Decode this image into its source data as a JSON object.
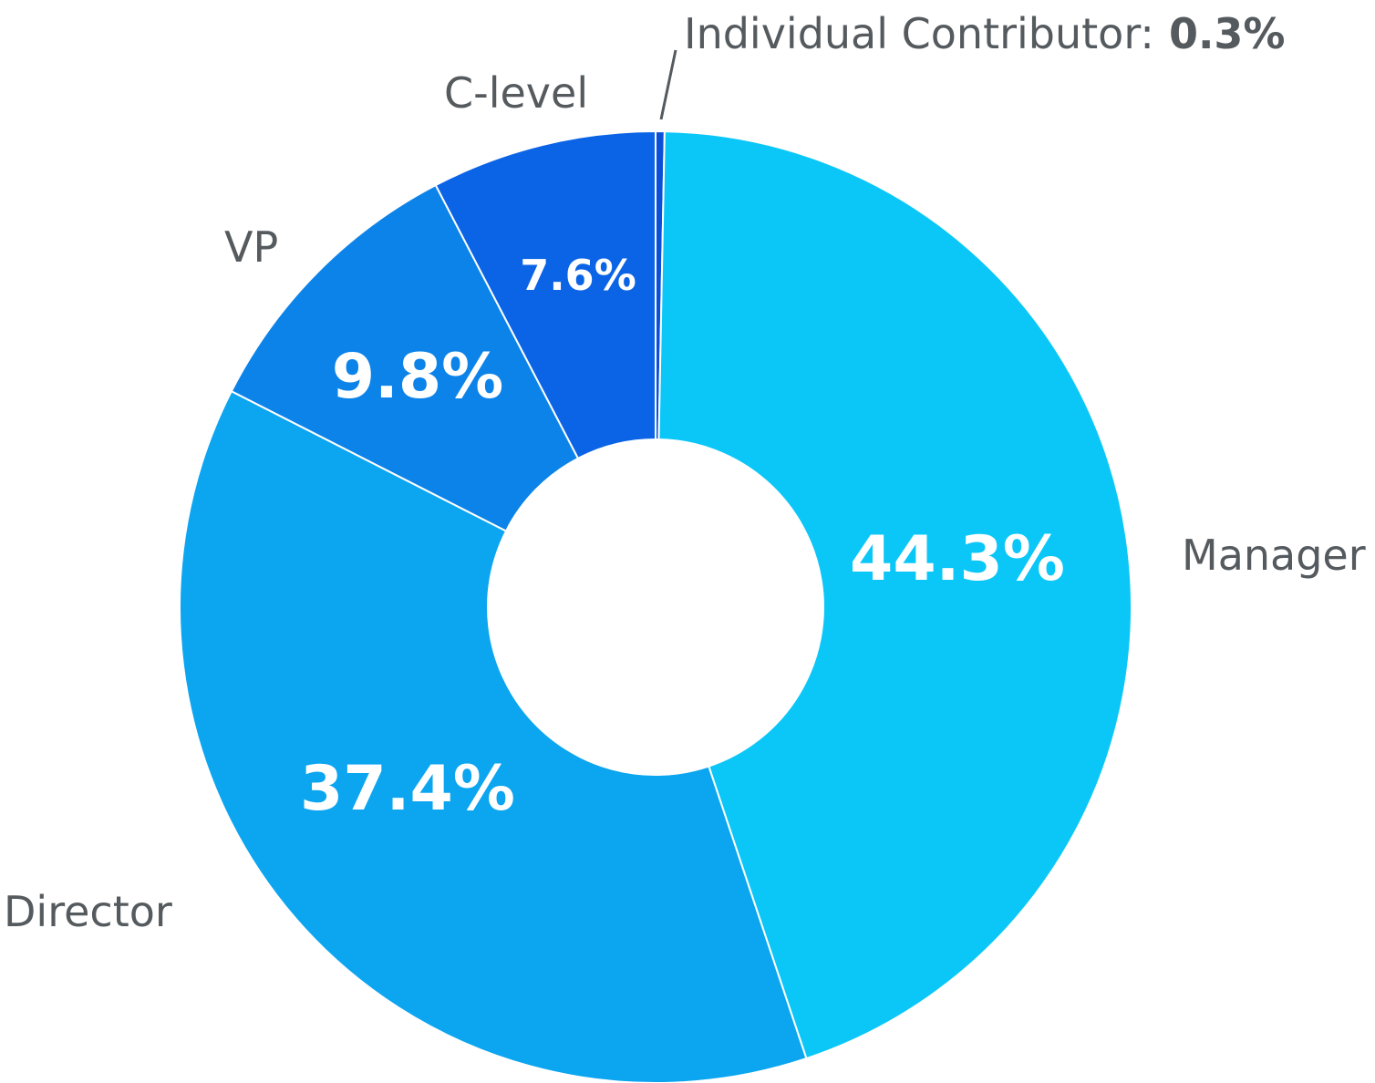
{
  "chart_data": {
    "type": "pie",
    "donut": true,
    "start": "top, clockwise",
    "categories": [
      "Individual Contributor",
      "Manager",
      "Director",
      "VP",
      "C-level"
    ],
    "values": [
      0.3,
      44.3,
      37.4,
      9.8,
      7.6
    ],
    "value_labels": [
      "0.3%",
      "44.3%",
      "37.4%",
      "9.8%",
      "7.6%"
    ],
    "colors": [
      "#0b4fd8",
      "#0bc7f8",
      "#0ba5f0",
      "#0c83e9",
      "#0b64e6"
    ],
    "annotation": {
      "name": "Individual Contributor:",
      "value": "0.3%"
    }
  }
}
